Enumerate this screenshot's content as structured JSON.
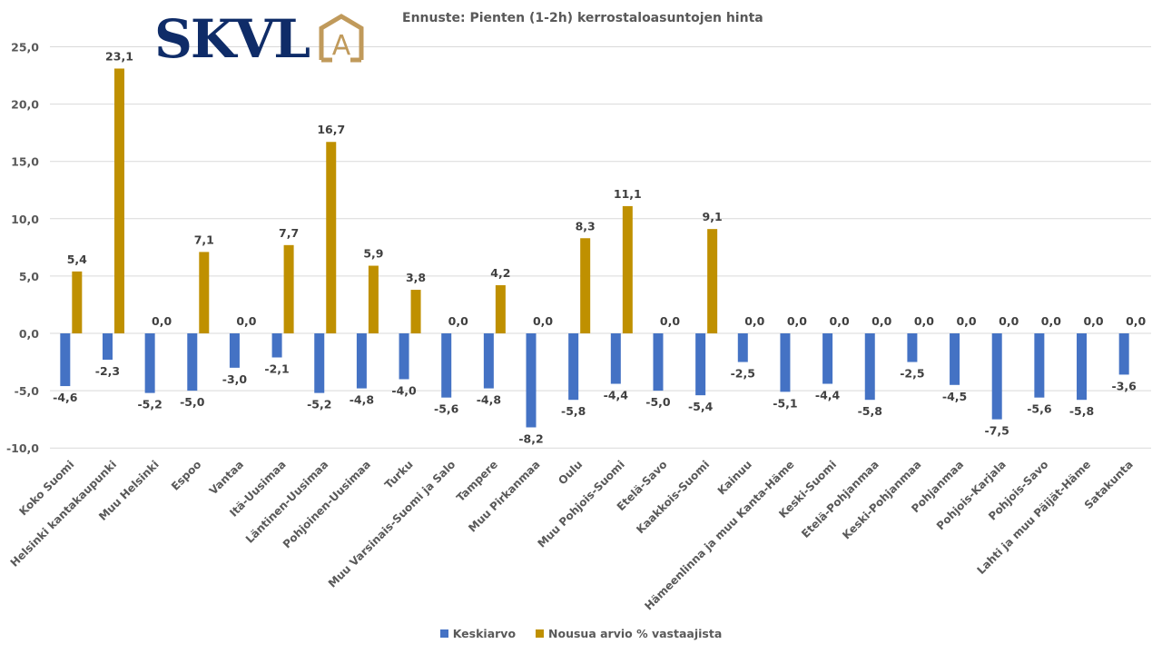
{
  "logo": {
    "text": "SKVL",
    "mark": "A",
    "mark_color": "#c09a5b",
    "text_color": "#0f2c68"
  },
  "chart_data": {
    "type": "bar",
    "title": "Ennuste: Pienten (1-2h) kerrostaloasuntojen hinta",
    "xlabel": "",
    "ylabel": "",
    "ylim": [
      -10,
      25
    ],
    "yticks": [
      "-10,0",
      "-5,0",
      "0,0",
      "5,0",
      "10,0",
      "15,0",
      "20,0",
      "25,0"
    ],
    "ytick_values": [
      -10,
      -5,
      0,
      5,
      10,
      15,
      20,
      25
    ],
    "grid": true,
    "legend_position": "bottom",
    "categories": [
      "Koko Suomi",
      "Helsinki kantakaupunki",
      "Muu Helsinki",
      "Espoo",
      "Vantaa",
      "Itä-Uusimaa",
      "Läntinen-Uusimaa",
      "Pohjoinen-Uusimaa",
      "Turku",
      "Muu Varsinais-Suomi ja Salo",
      "Tampere",
      "Muu Pirkanmaa",
      "Oulu",
      "Muu Pohjois-Suomi",
      "Etelä-Savo",
      "Kaakkois-Suomi",
      "Kainuu",
      "Hämeenlinna ja muu Kanta-Häme",
      "Keski-Suomi",
      "Etelä-Pohjanmaa",
      "Keski-Pohjanmaa",
      "Pohjanmaa",
      "Pohjois-Karjala",
      "Pohjois-Savo",
      "Lahti ja muu Päijät-Häme",
      "Satakunta"
    ],
    "series": [
      {
        "name": "Keskiarvo",
        "color": "#4472c4",
        "values": [
          -4.6,
          -2.3,
          -5.2,
          -5.0,
          -3.0,
          -2.1,
          -5.2,
          -4.8,
          -4.0,
          -5.6,
          -4.8,
          -8.2,
          -5.8,
          -4.4,
          -5.0,
          -5.4,
          -2.5,
          -5.1,
          -4.4,
          -5.8,
          -2.5,
          -4.5,
          -7.5,
          -5.6,
          -5.8,
          -3.6
        ],
        "labels": [
          "-4,6",
          "-2,3",
          "-5,2",
          "-5,0",
          "-3,0",
          "-2,1",
          "-5,2",
          "-4,8",
          "-4,0",
          "-5,6",
          "-4,8",
          "-8,2",
          "-5,8",
          "-4,4",
          "-5,0",
          "-5,4",
          "-2,5",
          "-5,1",
          "-4,4",
          "-5,8",
          "-2,5",
          "-4,5",
          "-7,5",
          "-5,6",
          "-5,8",
          "-3,6"
        ]
      },
      {
        "name": "Nousua arvio % vastaajista",
        "color": "#bf9000",
        "values": [
          5.4,
          23.1,
          0.0,
          7.1,
          0.0,
          7.7,
          16.7,
          5.9,
          3.8,
          0.0,
          4.2,
          0.0,
          8.3,
          11.1,
          0.0,
          9.1,
          0.0,
          0.0,
          0.0,
          0.0,
          0.0,
          0.0,
          0.0,
          0.0,
          0.0,
          0.0
        ],
        "labels": [
          "5,4",
          "23,1",
          "0,0",
          "7,1",
          "0,0",
          "7,7",
          "16,7",
          "5,9",
          "3,8",
          "0,0",
          "4,2",
          "0,0",
          "8,3",
          "11,1",
          "0,0",
          "9,1",
          "0,0",
          "0,0",
          "0,0",
          "0,0",
          "0,0",
          "0,0",
          "0,0",
          "0,0",
          "0,0",
          "0,0"
        ]
      }
    ]
  }
}
